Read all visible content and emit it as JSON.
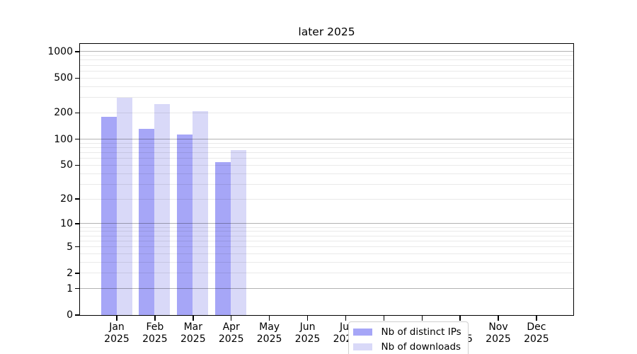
{
  "title": "later 2025",
  "chart_data": {
    "type": "bar",
    "title": "later 2025",
    "categories": [
      "Jan",
      "Feb",
      "Mar",
      "Apr",
      "May",
      "Jun",
      "Jul",
      "Aug",
      "Sep",
      "Oct",
      "Nov",
      "Dec"
    ],
    "x_year_label": "2025",
    "series": [
      {
        "name": "Nb of distinct IPs",
        "color": "#a6a6f7",
        "values": [
          178,
          130,
          111,
          54,
          0,
          0,
          0,
          0,
          0,
          0,
          0,
          0
        ]
      },
      {
        "name": "Nb of downloads",
        "color": "#d9d9f8",
        "values": [
          293,
          251,
          206,
          74,
          0,
          0,
          0,
          0,
          0,
          0,
          0,
          0
        ]
      }
    ],
    "y_tick_labels": [
      "0",
      "1",
      "2",
      "5",
      "10",
      "20",
      "50",
      "100",
      "200",
      "500",
      "1000"
    ],
    "yscale": "log1p",
    "ylim": [
      0,
      1200
    ],
    "grid": "horizontal, major at 1/10/100/1000, minor at log subdivisions",
    "legend_position": "inside plot, lower left of center"
  }
}
